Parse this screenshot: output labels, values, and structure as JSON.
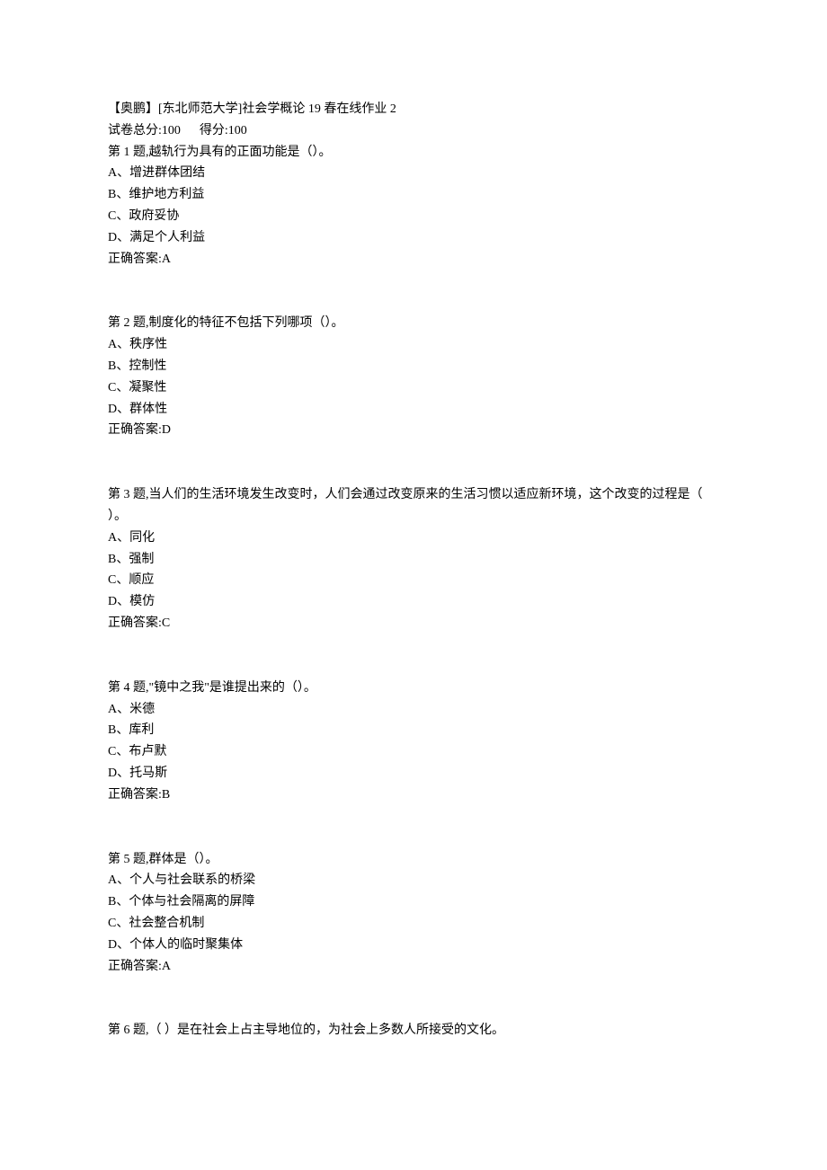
{
  "header": {
    "title": "【奥鹏】[东北师范大学]社会学概论 19 春在线作业 2",
    "scoreline": "试卷总分:100      得分:100"
  },
  "questions": [
    {
      "prompt": "第 1 题,越轨行为具有的正面功能是（）。",
      "options": [
        "A、增进群体团结",
        "B、维护地方利益",
        "C、政府妥协",
        "D、满足个人利益"
      ],
      "answer": "正确答案:A"
    },
    {
      "prompt": "第 2 题,制度化的特征不包括下列哪项（）。",
      "options": [
        "A、秩序性",
        "B、控制性",
        "C、凝聚性",
        "D、群体性"
      ],
      "answer": "正确答案:D"
    },
    {
      "prompt": "第 3 题,当人们的生活环境发生改变时，人们会通过改变原来的生活习惯以适应新环境，这个改变的过程是（  ）。",
      "options": [
        "A、同化",
        "B、强制",
        "C、顺应",
        "D、模仿"
      ],
      "answer": "正确答案:C"
    },
    {
      "prompt": "第 4 题,\"镜中之我\"是谁提出来的（）。",
      "options": [
        "A、米德",
        "B、库利",
        "C、布卢默",
        "D、托马斯"
      ],
      "answer": "正确答案:B"
    },
    {
      "prompt": "第 5 题,群体是（）。",
      "options": [
        "A、个人与社会联系的桥梁",
        "B、个体与社会隔离的屏障",
        "C、社会整合机制",
        "D、个体人的临时聚集体"
      ],
      "answer": "正确答案:A"
    },
    {
      "prompt": "第 6 题,（ ）是在社会上占主导地位的，为社会上多数人所接受的文化。",
      "options": [],
      "answer": null
    }
  ]
}
